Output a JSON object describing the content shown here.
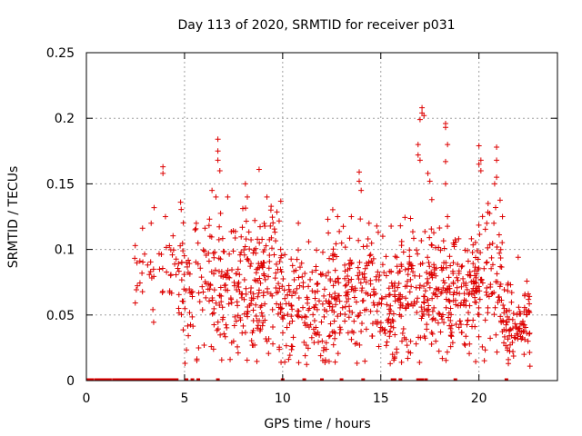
{
  "chart_data": {
    "type": "scatter",
    "title": "Day 113 of 2020, SRMTID for receiver p031",
    "xlabel": "GPS time / hours",
    "ylabel": "SRMTID / TECUs",
    "xlim": [
      0,
      24
    ],
    "ylim": [
      0,
      0.25
    ],
    "x_ticks": [
      0,
      5,
      10,
      15,
      20
    ],
    "x_tick_labels": [
      "0",
      "5",
      "10",
      "15",
      "20"
    ],
    "y_ticks": [
      0,
      0.05,
      0.1,
      0.15,
      0.2,
      0.25
    ],
    "y_tick_labels": [
      "0",
      "0.05",
      "0.1",
      "0.15",
      "0.2",
      "0.25"
    ],
    "grid": true,
    "marker": "plus",
    "series": [
      {
        "name": "SRMTID p031",
        "color": "#dd0000",
        "segments": [
          {
            "x0": 2.4,
            "x1": 4.6,
            "mean": 0.085,
            "spread": 0.02,
            "n": 45
          },
          {
            "x0": 4.6,
            "x1": 6.6,
            "mean": 0.072,
            "spread": 0.025,
            "n": 90
          },
          {
            "x0": 6.6,
            "x1": 8.8,
            "mean": 0.07,
            "spread": 0.027,
            "n": 150
          },
          {
            "x0": 8.8,
            "x1": 10.0,
            "mean": 0.075,
            "spread": 0.028,
            "n": 90
          },
          {
            "x0": 10.0,
            "x1": 12.5,
            "mean": 0.06,
            "spread": 0.022,
            "n": 140
          },
          {
            "x0": 12.5,
            "x1": 14.8,
            "mean": 0.068,
            "spread": 0.025,
            "n": 150
          },
          {
            "x0": 14.8,
            "x1": 16.0,
            "mean": 0.058,
            "spread": 0.022,
            "n": 80
          },
          {
            "x0": 16.0,
            "x1": 17.6,
            "mean": 0.067,
            "spread": 0.025,
            "n": 110
          },
          {
            "x0": 17.6,
            "x1": 19.6,
            "mean": 0.065,
            "spread": 0.025,
            "n": 150
          },
          {
            "x0": 19.6,
            "x1": 21.2,
            "mean": 0.072,
            "spread": 0.026,
            "n": 110
          },
          {
            "x0": 21.2,
            "x1": 22.6,
            "mean": 0.045,
            "spread": 0.014,
            "n": 90
          }
        ],
        "peaks": [
          [
            3.9,
            0.163
          ],
          [
            3.9,
            0.158
          ],
          [
            3.3,
            0.12
          ],
          [
            4.8,
            0.136
          ],
          [
            5.6,
            0.12
          ],
          [
            6.4,
            0.145
          ],
          [
            6.7,
            0.184
          ],
          [
            6.7,
            0.175
          ],
          [
            6.7,
            0.168
          ],
          [
            6.8,
            0.16
          ],
          [
            6.6,
            0.14
          ],
          [
            7.2,
            0.14
          ],
          [
            8.1,
            0.15
          ],
          [
            8.2,
            0.14
          ],
          [
            8.8,
            0.161
          ],
          [
            9.2,
            0.14
          ],
          [
            9.4,
            0.13
          ],
          [
            10.8,
            0.12
          ],
          [
            12.3,
            0.123
          ],
          [
            12.8,
            0.125
          ],
          [
            13.9,
            0.159
          ],
          [
            13.9,
            0.152
          ],
          [
            14.0,
            0.145
          ],
          [
            13.5,
            0.125
          ],
          [
            14.4,
            0.12
          ],
          [
            15.1,
            0.11
          ],
          [
            16.0,
            0.118
          ],
          [
            16.9,
            0.18
          ],
          [
            16.9,
            0.172
          ],
          [
            17.0,
            0.168
          ],
          [
            17.1,
            0.208
          ],
          [
            17.1,
            0.204
          ],
          [
            17.2,
            0.202
          ],
          [
            17.0,
            0.199
          ],
          [
            17.4,
            0.158
          ],
          [
            17.6,
            0.138
          ],
          [
            17.5,
            0.152
          ],
          [
            18.3,
            0.196
          ],
          [
            18.3,
            0.193
          ],
          [
            18.4,
            0.18
          ],
          [
            18.3,
            0.167
          ],
          [
            18.3,
            0.15
          ],
          [
            18.4,
            0.125
          ],
          [
            20.0,
            0.179
          ],
          [
            20.1,
            0.168
          ],
          [
            20.0,
            0.165
          ],
          [
            20.1,
            0.16
          ],
          [
            20.9,
            0.178
          ],
          [
            20.9,
            0.168
          ],
          [
            20.9,
            0.155
          ],
          [
            20.8,
            0.15
          ],
          [
            21.2,
            0.125
          ],
          [
            22.0,
            0.094
          ],
          [
            20.4,
            0.12
          ],
          [
            6.3,
            0.11
          ],
          [
            9.9,
            0.1
          ]
        ],
        "lows": [
          [
            6.0,
            0.027
          ],
          [
            7.5,
            0.03
          ],
          [
            9.5,
            0.028
          ],
          [
            10.5,
            0.026
          ],
          [
            11.2,
            0.027
          ],
          [
            11.6,
            0.029
          ],
          [
            12.1,
            0.025
          ],
          [
            14.9,
            0.026
          ],
          [
            15.6,
            0.02
          ],
          [
            15.7,
            0.018
          ],
          [
            16.8,
            0.028
          ],
          [
            17.8,
            0.03
          ],
          [
            19.3,
            0.027
          ],
          [
            21.5,
            0.013
          ],
          [
            21.5,
            0.016
          ],
          [
            22.6,
            0.011
          ],
          [
            22.3,
            0.02
          ],
          [
            22.5,
            0.03
          ]
        ],
        "zeros": [
          0.1,
          0.2,
          0.3,
          0.5,
          0.6,
          0.7,
          0.8,
          0.9,
          1.0,
          1.1,
          1.2,
          1.4,
          1.5,
          1.6,
          1.7,
          1.8,
          1.9,
          2.0,
          2.1,
          2.2,
          2.3,
          2.4,
          2.5,
          2.6,
          2.7,
          2.8,
          2.9,
          3.0,
          3.1,
          3.2,
          3.3,
          3.4,
          3.5,
          3.6,
          3.7,
          3.8,
          3.9,
          4.0,
          4.1,
          4.2,
          4.3,
          4.4,
          4.5,
          4.6,
          5.1,
          5.4,
          5.7,
          6.7,
          10.0,
          11.1,
          12.0,
          13.0,
          14.1,
          15.6,
          15.7,
          16.0,
          16.9,
          17.0,
          17.1,
          17.3,
          18.8,
          21.4
        ]
      }
    ]
  }
}
